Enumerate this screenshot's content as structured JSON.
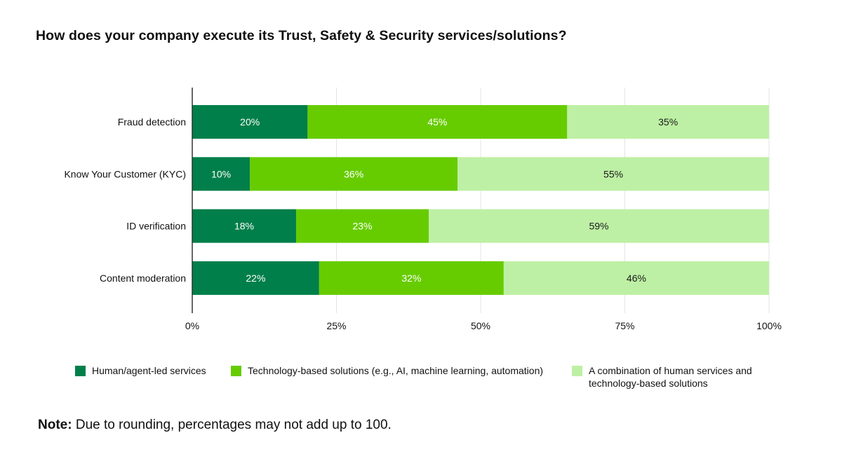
{
  "title": "How does your company execute its Trust, Safety & Security services/solutions?",
  "note": {
    "label": "Note:",
    "text": " Due to rounding, percentages may not add up to 100."
  },
  "colors": {
    "human": "#007f4a",
    "technology": "#66cc00",
    "combination": "#bdf0a4",
    "grid": "#e4e4e4",
    "axis": "#333333"
  },
  "chart_data": {
    "type": "bar",
    "orientation": "horizontal",
    "stacked": true,
    "categories": [
      "Fraud detection",
      "Know Your Customer (KYC)",
      "ID verification",
      "Content moderation"
    ],
    "series": [
      {
        "name": "Human/agent-led services",
        "values": [
          20,
          10,
          18,
          22
        ],
        "color": "#007f4a",
        "label_color": "#ffffff"
      },
      {
        "name": "Technology-based solutions (e.g., AI, machine learning, automation)",
        "values": [
          45,
          36,
          23,
          32
        ],
        "color": "#66cc00",
        "label_color": "#ffffff"
      },
      {
        "name": "A combination of human services and technology-based solutions",
        "values": [
          35,
          55,
          59,
          46
        ],
        "color": "#bdf0a4",
        "label_color": "#1a1a1a"
      }
    ],
    "xlim": [
      0,
      100
    ],
    "xticks": [
      0,
      25,
      50,
      75,
      100
    ],
    "xtick_labels": [
      "0%",
      "25%",
      "50%",
      "75%",
      "100%"
    ],
    "value_suffix": "%",
    "grid": true,
    "legend_position": "bottom"
  }
}
